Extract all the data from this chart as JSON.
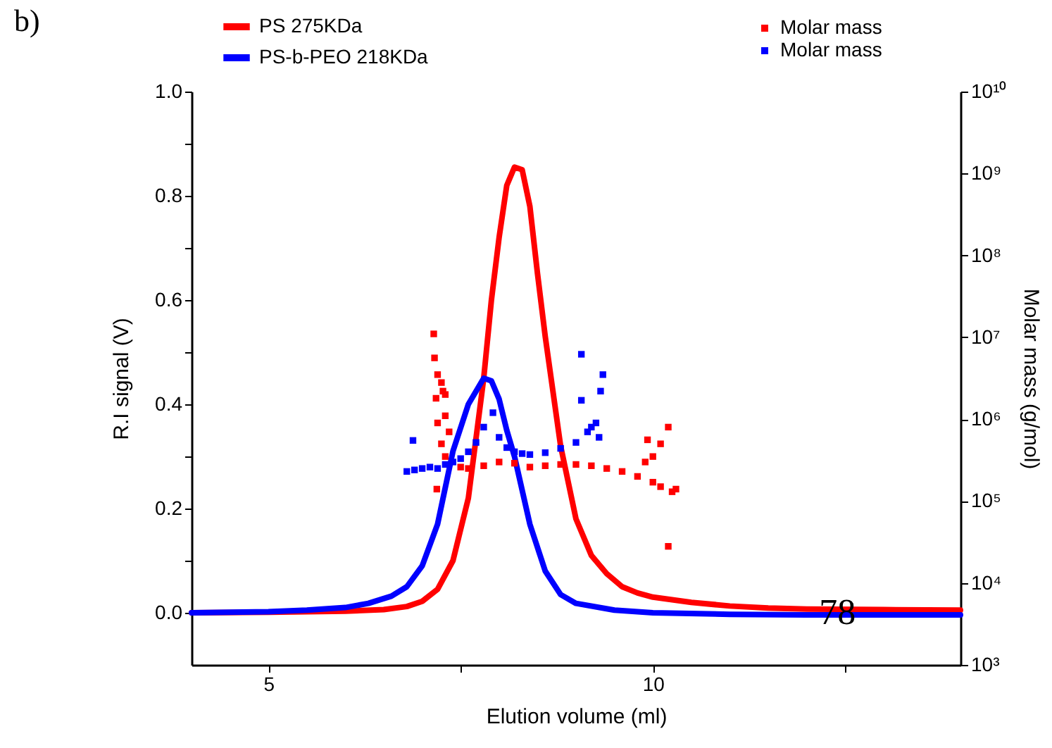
{
  "chart_data": {
    "type": "line",
    "xlabel": "Elution volume (ml)",
    "ylabel": "R.I signal (V)",
    "y2label": "Molar mass (g/mol)",
    "xlim": [
      4,
      14
    ],
    "ylim": [
      -0.1,
      1.0
    ],
    "y2lim": [
      1000,
      10000000000
    ],
    "log": "y2",
    "legend": "top",
    "line_style": "solid",
    "xticks": [
      5,
      {
        "value": 7.5,
        "label": null
      },
      10,
      {
        "value": 12.5,
        "label": null
      }
    ],
    "yticks": [
      {
        "value": 0,
        "label": "0.0"
      },
      {
        "value": 0.1,
        "label": null
      },
      0.2,
      {
        "value": 0.3,
        "label": null
      },
      0.4,
      {
        "value": 0.5,
        "label": null
      },
      0.6,
      {
        "value": 0.7,
        "label": null
      },
      0.8,
      {
        "value": 0.9,
        "label": null
      },
      {
        "value": 1,
        "label": "1.0"
      }
    ],
    "y2ticks": [
      {
        "value": 1000,
        "label": "10³"
      },
      {
        "value": 10000,
        "label": "10⁴"
      },
      {
        "value": 100000,
        "label": "10⁵"
      },
      {
        "value": 1000000,
        "label": "10⁶"
      },
      {
        "value": 10000000,
        "label": "10⁷"
      },
      {
        "value": 100000000,
        "label": "10⁸"
      },
      {
        "value": 1000000000,
        "label": "10⁹"
      },
      {
        "value": 10000000000,
        "label": "10¹⁰"
      }
    ],
    "annotations": [
      "b)",
      {
        "text": "78",
        "x": 12.4,
        "y": 0.0
      }
    ],
    "series": [
      {
        "name": "PS 275KDa",
        "color": "#ff0000",
        "type": "line",
        "x": [
          4,
          5,
          6,
          6.5,
          6.8,
          7.0,
          7.2,
          7.4,
          7.6,
          7.8,
          7.9,
          8.0,
          8.1,
          8.2,
          8.3,
          8.4,
          8.5,
          8.6,
          8.8,
          9.0,
          9.2,
          9.4,
          9.6,
          9.8,
          10,
          10.5,
          11,
          11.5,
          12,
          13,
          14
        ],
        "values": [
          0,
          0.001,
          0.003,
          0.006,
          0.012,
          0.022,
          0.045,
          0.1,
          0.22,
          0.45,
          0.6,
          0.72,
          0.82,
          0.855,
          0.85,
          0.78,
          0.65,
          0.53,
          0.32,
          0.18,
          0.11,
          0.075,
          0.05,
          0.038,
          0.03,
          0.02,
          0.013,
          0.009,
          0.007,
          0.006,
          0.005
        ]
      },
      {
        "name": "PS-b-PEO 218KDa",
        "color": "#0000ff",
        "type": "line",
        "x": [
          4,
          5,
          5.5,
          6,
          6.3,
          6.6,
          6.8,
          7.0,
          7.2,
          7.4,
          7.6,
          7.8,
          7.9,
          8.0,
          8.1,
          8.2,
          8.4,
          8.6,
          8.8,
          9.0,
          9.5,
          10,
          11,
          12,
          14
        ],
        "values": [
          0,
          0.002,
          0.005,
          0.01,
          0.018,
          0.032,
          0.05,
          0.09,
          0.17,
          0.31,
          0.4,
          0.45,
          0.445,
          0.41,
          0.35,
          0.3,
          0.17,
          0.08,
          0.035,
          0.018,
          0.005,
          0.0,
          -0.003,
          -0.004,
          -0.004
        ]
      },
      {
        "name": "Molar mass",
        "color": "#ff0000",
        "type": "scatter",
        "axis": "y2",
        "marker": "square",
        "x": [
          7.15,
          7.16,
          7.2,
          7.25,
          7.27,
          7.18,
          7.3,
          7.3,
          7.2,
          7.35,
          7.25,
          7.3,
          7.19,
          7.5,
          7.6,
          7.8,
          8.0,
          8.2,
          8.4,
          8.6,
          8.8,
          9.0,
          9.2,
          9.4,
          9.6,
          9.8,
          9.9,
          9.93,
          10.0,
          10.0,
          10.1,
          10.1,
          10.2,
          10.25,
          10.2,
          10.3
        ],
        "values": [
          11000000,
          5600000,
          3500000,
          2800000,
          2200000,
          1800000,
          2000000,
          1100000,
          900000,
          700000,
          500000,
          350000,
          140000,
          260000,
          250000,
          270000,
          300000,
          290000,
          260000,
          270000,
          280000,
          280000,
          270000,
          250000,
          230000,
          200000,
          300000,
          560000,
          350000,
          170000,
          500000,
          150000,
          800000,
          130000,
          28000,
          140000
        ]
      },
      {
        "name": "Molar mass",
        "color": "#0000ff",
        "type": "scatter",
        "axis": "y2",
        "marker": "square",
        "x": [
          6.8,
          6.9,
          6.88,
          7.0,
          7.1,
          7.2,
          7.3,
          7.4,
          7.5,
          7.6,
          7.7,
          7.8,
          7.92,
          8.0,
          8.1,
          8.2,
          8.3,
          8.4,
          8.6,
          8.8,
          9.0,
          9.07,
          9.07,
          9.15,
          9.2,
          9.26,
          9.32,
          9.35,
          9.3
        ],
        "values": [
          230000,
          240000,
          550000,
          250000,
          260000,
          250000,
          280000,
          300000,
          330000,
          400000,
          520000,
          800000,
          1200000,
          600000,
          450000,
          400000,
          380000,
          370000,
          390000,
          440000,
          520000,
          1700000,
          6200000,
          700000,
          800000,
          900000,
          2200000,
          3500000,
          600000
        ]
      }
    ]
  }
}
